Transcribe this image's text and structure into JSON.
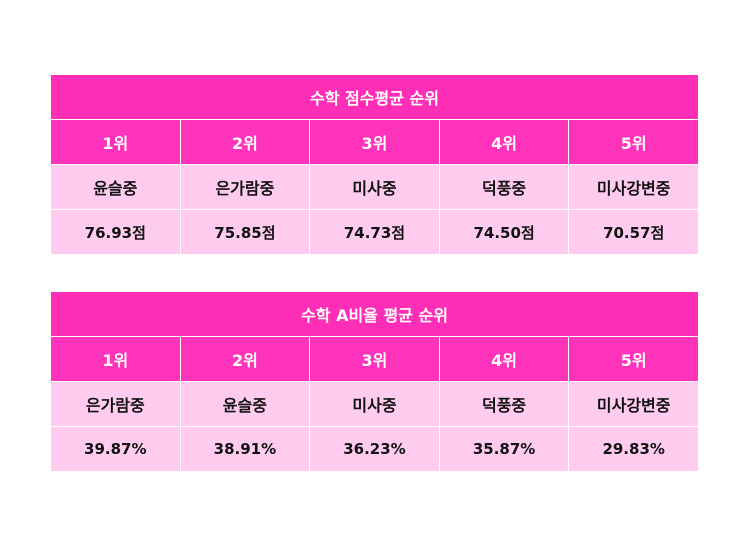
{
  "score_table": {
    "title": "수학 점수평균 순위",
    "ranks": [
      "1위",
      "2위",
      "3위",
      "4위",
      "5위"
    ],
    "schools": [
      "윤슬중",
      "은가람중",
      "미사중",
      "덕풍중",
      "미사강변중"
    ],
    "values": [
      "76.93점",
      "75.85점",
      "74.73점",
      "74.50점",
      "70.57점"
    ]
  },
  "ratio_table": {
    "title": "수학 A비율 평균 순위",
    "ranks": [
      "1위",
      "2위",
      "3위",
      "4위",
      "5위"
    ],
    "schools": [
      "은가람중",
      "윤슬중",
      "미사중",
      "덕풍중",
      "미사강변중"
    ],
    "values": [
      "39.87%",
      "38.91%",
      "36.23%",
      "35.87%",
      "29.83%"
    ]
  },
  "colors": {
    "header_magenta": "#ff2eb6",
    "row_pink": "#ffccf0"
  }
}
